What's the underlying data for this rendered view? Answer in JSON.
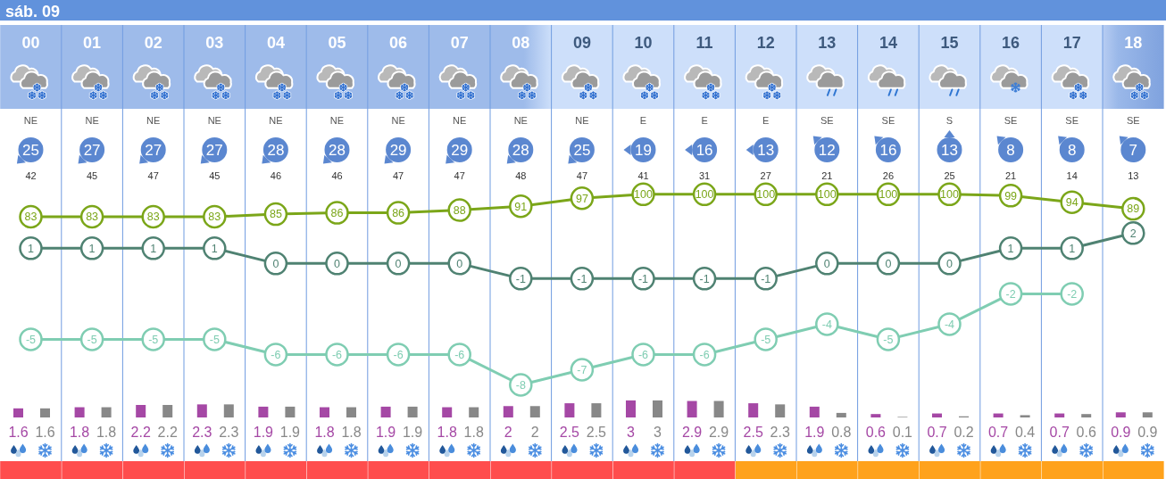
{
  "chart_data": [
    {
      "type": "line",
      "title": "sáb. 09",
      "categories": [
        "00",
        "01",
        "02",
        "03",
        "04",
        "05",
        "06",
        "07",
        "08",
        "09",
        "10",
        "11",
        "12",
        "13",
        "14",
        "15",
        "16",
        "17",
        "18"
      ],
      "series": [
        {
          "color": "#7ba619",
          "values": [
            83,
            83,
            83,
            83,
            85,
            86,
            86,
            88,
            91,
            97,
            100,
            100,
            100,
            100,
            100,
            100,
            99,
            94,
            89
          ]
        }
      ],
      "grid": "x",
      "marker": "circle",
      "data_labels": true,
      "annotations": [
        "NE",
        "NE",
        "NE",
        "NE",
        "NE",
        "NE",
        "NE",
        "NE",
        "NE",
        "NE",
        "E",
        "E",
        "E",
        "SE",
        "SE",
        "S",
        "SE",
        "SE",
        "SE",
        "25",
        "27",
        "27",
        "27",
        "28",
        "28",
        "29",
        "29",
        "28",
        "25",
        "19",
        "16",
        "13",
        "12",
        "16",
        "13",
        "8",
        "8",
        "7",
        "42",
        "45",
        "47",
        "45",
        "46",
        "46",
        "47",
        "47",
        "48",
        "47",
        "41",
        "31",
        "27",
        "21",
        "26",
        "25",
        "21",
        "14",
        "13"
      ]
    },
    {
      "type": "line",
      "categories": [
        null,
        null,
        null,
        null,
        null,
        null,
        null,
        null,
        null,
        null,
        null,
        null,
        null,
        null,
        null,
        null,
        null,
        null,
        null
      ],
      "series": [
        {
          "color": "#4f8272",
          "values": [
            1,
            1,
            1,
            1,
            0,
            0,
            0,
            0,
            -1,
            -1,
            -1,
            -1,
            -1,
            0,
            0,
            0,
            1,
            1,
            2
          ]
        },
        {
          "color": "#7fcdb2",
          "values": [
            -5,
            -5,
            -5,
            -5,
            -6,
            -6,
            -6,
            -6,
            -8,
            -7,
            -6,
            -6,
            -5,
            -4,
            -5,
            -4,
            -2,
            -2,
            null
          ]
        }
      ],
      "grid": "x",
      "marker": "circle",
      "data_labels": true
    },
    {
      "type": "bar",
      "categories": [
        null,
        null,
        null,
        null,
        null,
        null,
        null,
        null,
        null,
        null,
        null,
        null,
        null,
        null,
        null,
        null,
        null,
        null,
        null
      ],
      "series": [
        {
          "color": "#a548a5",
          "values": [
            1.6,
            1.8,
            2.2,
            2.3,
            1.9,
            1.8,
            1.9,
            1.8,
            2,
            2.5,
            3,
            2.9,
            2.5,
            1.9,
            0.6,
            0.7,
            0.7,
            0.7,
            0.9
          ]
        },
        {
          "color": "#888888",
          "values": [
            1.6,
            1.8,
            2.2,
            2.3,
            1.9,
            1.8,
            1.9,
            1.8,
            2,
            2.5,
            3,
            2.9,
            2.3,
            0.8,
            0.1,
            0.2,
            0.4,
            0.6,
            0.9
          ]
        }
      ],
      "grid": "x",
      "data_labels": true
    }
  ]
}
